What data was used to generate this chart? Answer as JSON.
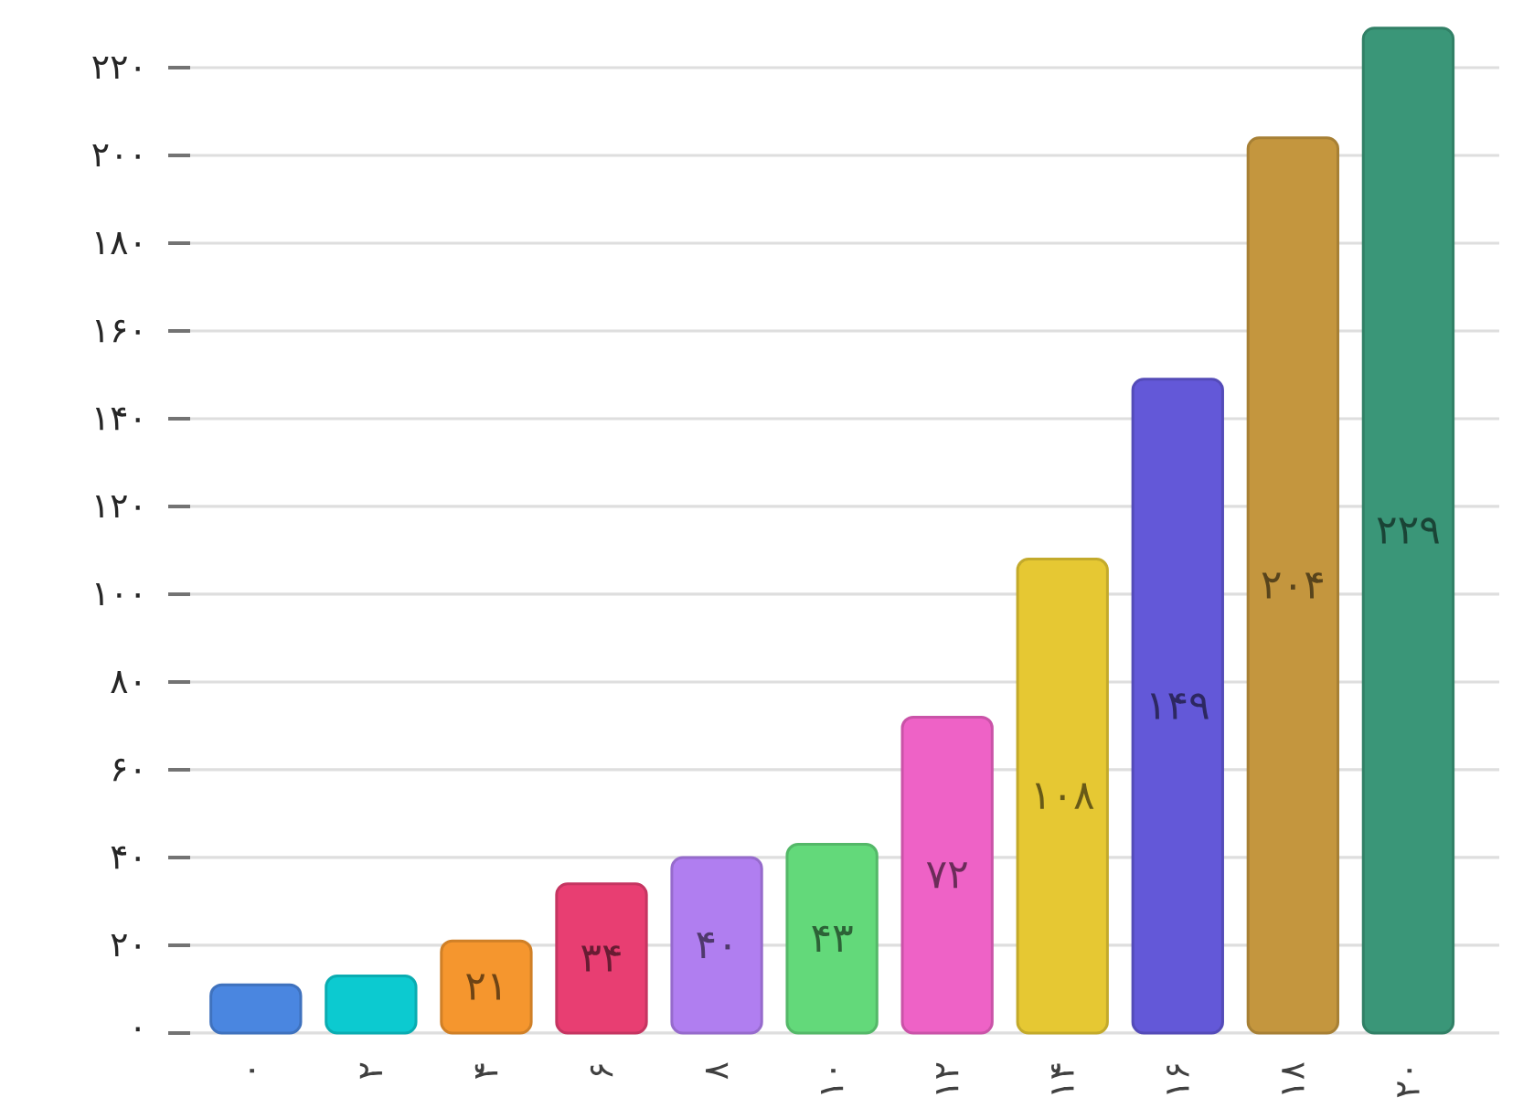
{
  "chart_data": {
    "type": "bar",
    "categories": [
      "۰",
      "۲",
      "۴",
      "۶",
      "۸",
      "۱۰",
      "۱۲",
      "۱۴",
      "۱۶",
      "۱۸",
      "۲۰"
    ],
    "values": [
      11,
      13,
      21,
      34,
      40,
      43,
      72,
      108,
      149,
      204,
      229
    ],
    "value_labels": [
      null,
      null,
      "۲۱",
      "۳۴",
      "۴۰",
      "۴۳",
      "۷۲",
      "۱۰۸",
      "۱۴۹",
      "۲۰۴",
      "۲۲۹"
    ],
    "colors": [
      "#4a86e0",
      "#0ccad0",
      "#f5962e",
      "#e83e72",
      "#b07ef0",
      "#63d97a",
      "#ee62c6",
      "#e6c833",
      "#6358d8",
      "#c4963e",
      "#3a9678"
    ],
    "ylim": [
      0,
      230
    ],
    "yticks": [
      {
        "value": 0,
        "label": "۰"
      },
      {
        "value": 20,
        "label": "۲۰"
      },
      {
        "value": 40,
        "label": "۴۰"
      },
      {
        "value": 60,
        "label": "۶۰"
      },
      {
        "value": 80,
        "label": "۸۰"
      },
      {
        "value": 100,
        "label": "۱۰۰"
      },
      {
        "value": 120,
        "label": "۱۲۰"
      },
      {
        "value": 140,
        "label": "۱۴۰"
      },
      {
        "value": 160,
        "label": "۱۶۰"
      },
      {
        "value": 180,
        "label": "۱۸۰"
      },
      {
        "value": 200,
        "label": "۲۰۰"
      },
      {
        "value": 220,
        "label": "۲۲۰"
      }
    ],
    "grid": "y"
  }
}
